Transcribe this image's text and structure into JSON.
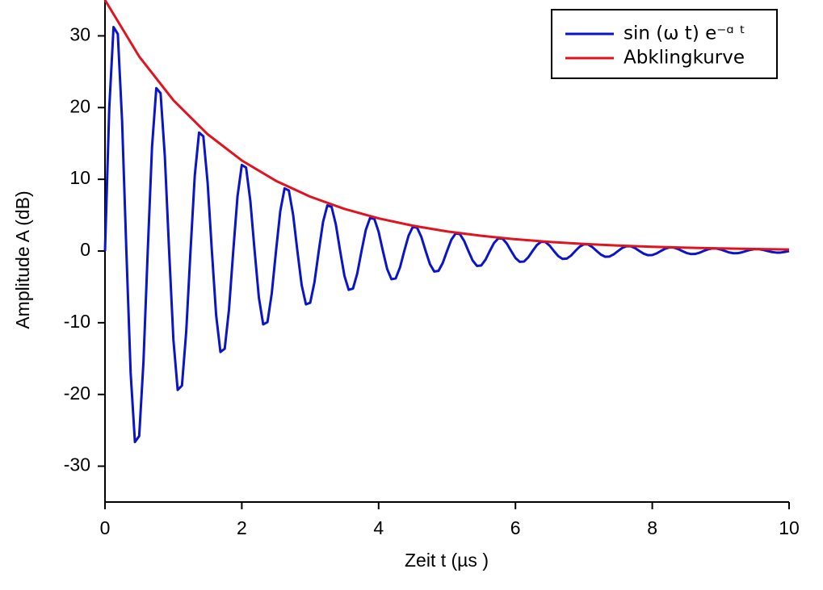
{
  "chart_data": {
    "type": "line",
    "xlabel": "Zeit t (µs )",
    "ylabel": "Amplitude A (dB)",
    "xlim": [
      0,
      10
    ],
    "ylim": [
      -35,
      35
    ],
    "xticks": [
      0,
      2,
      4,
      6,
      8,
      10
    ],
    "yticks": [
      -30,
      -20,
      -10,
      0,
      10,
      20,
      30
    ],
    "legend": "upper right",
    "series": [
      {
        "name": "sin (ω t) e⁻ᵅ ᵗ",
        "color": "#0a14c8",
        "x": [
          0,
          0.0625,
          0.125,
          0.1875,
          0.25,
          0.3125,
          0.375,
          0.4375,
          0.5,
          0.5625,
          0.625,
          0.6875,
          0.75,
          0.8125,
          0.875,
          0.9375,
          1,
          1.0625,
          1.125,
          1.1875,
          1.25,
          1.3125,
          1.375,
          1.4375,
          1.5,
          1.5625,
          1.625,
          1.6875,
          1.75,
          1.8125,
          1.875,
          1.9375,
          2,
          2.0625,
          2.125,
          2.1875,
          2.25,
          2.3125,
          2.375,
          2.4375,
          2.5,
          2.5625,
          2.625,
          2.6875,
          2.75,
          2.8125,
          2.875,
          2.9375,
          3,
          3.0625,
          3.125,
          3.1875,
          3.25,
          3.3125,
          3.375,
          3.4375,
          3.5,
          3.5625,
          3.625,
          3.6875,
          3.75,
          3.8125,
          3.875,
          3.9375,
          4,
          4.0625,
          4.125,
          4.1875,
          4.25,
          4.3125,
          4.375,
          4.4375,
          4.5,
          4.5625,
          4.625,
          4.6875,
          4.75,
          4.8125,
          4.875,
          4.9375,
          5,
          5.0625,
          5.125,
          5.1875,
          5.25,
          5.3125,
          5.375,
          5.4375,
          5.5,
          5.5625,
          5.625,
          5.6875,
          5.75,
          5.8125,
          5.875,
          5.9375,
          6,
          6.0625,
          6.125,
          6.1875,
          6.25,
          6.3125,
          6.375,
          6.4375,
          6.5,
          6.5625,
          6.625,
          6.6875,
          6.75,
          6.8125,
          6.875,
          6.9375,
          7,
          7.0625,
          7.125,
          7.1875,
          7.25,
          7.3125,
          7.375,
          7.4375,
          7.5,
          7.5625,
          7.625,
          7.6875,
          7.75,
          7.8125,
          7.875,
          7.9375,
          8,
          8.0625,
          8.125,
          8.1875,
          8.25,
          8.3125,
          8.375,
          8.4375,
          8.5,
          8.5625,
          8.625,
          8.6875,
          8.75,
          8.8125,
          8.875,
          8.9375,
          9,
          9.0625,
          9.125,
          9.1875,
          9.25,
          9.3125,
          9.375,
          9.4375,
          9.5,
          9.5625,
          9.625,
          9.6875,
          9.75,
          9.8125,
          9.875,
          9.9375,
          10
        ],
        "values": [
          0,
          19.93,
          31.23,
          30.25,
          18.11,
          0,
          -16.99,
          -26.63,
          -25.8,
          -15.44,
          0,
          14.49,
          22.71,
          22.0,
          13.17,
          0,
          -12.36,
          -19.37,
          -18.76,
          -11.23,
          0,
          10.53,
          16.51,
          15.99,
          9.57,
          0,
          -8.98,
          -14.08,
          -13.63,
          -8.16,
          0,
          7.66,
          12.0,
          11.63,
          6.96,
          0,
          -6.53,
          -10.23,
          -9.91,
          -5.93,
          0,
          5.57,
          8.73,
          8.45,
          5.06,
          0,
          -4.75,
          -7.44,
          -7.21,
          -4.32,
          0,
          4.05,
          6.35,
          6.15,
          3.68,
          0,
          -3.45,
          -5.41,
          -5.24,
          -3.14,
          0,
          2.94,
          4.61,
          4.47,
          2.68,
          0,
          -2.51,
          -3.93,
          -3.81,
          -2.28,
          0,
          2.14,
          3.36,
          3.25,
          1.95,
          0,
          -1.83,
          -2.86,
          -2.77,
          -1.66,
          0,
          1.56,
          2.44,
          2.36,
          1.41,
          0,
          -1.33,
          -2.08,
          -2.01,
          -1.21,
          0,
          1.13,
          1.77,
          1.72,
          1.03,
          0,
          -0.97,
          -1.51,
          -1.47,
          -0.88,
          0,
          0.82,
          1.29,
          1.25,
          0.75,
          0,
          -0.7,
          -1.1,
          -1.06,
          -0.64,
          0,
          0.6,
          0.94,
          0.91,
          0.54,
          0,
          -0.51,
          -0.8,
          -0.77,
          -0.46,
          0,
          0.44,
          0.68,
          0.66,
          0.4,
          0,
          -0.37,
          -0.58,
          -0.56,
          -0.34,
          0,
          0.32,
          0.5,
          0.48,
          0.29,
          0,
          -0.27,
          -0.42,
          -0.41,
          -0.25,
          0,
          0.23,
          0.36,
          0.35,
          0.21,
          0,
          -0.2,
          -0.31,
          -0.3,
          -0.18,
          0,
          0.17,
          0.26,
          0.25,
          0.15,
          0,
          -0.14,
          -0.22,
          -0.22,
          -0.13,
          0
        ]
      },
      {
        "name": "Abklingkurve",
        "color": "#e0141e",
        "x": [
          0,
          0.5,
          1,
          1.5,
          2,
          2.5,
          3,
          3.5,
          4,
          4.5,
          5,
          5.5,
          6,
          6.5,
          7,
          7.5,
          8,
          8.5,
          9,
          9.5,
          10
        ],
        "values": [
          35,
          27.12,
          21.02,
          16.29,
          12.62,
          9.78,
          7.58,
          5.87,
          4.55,
          3.53,
          2.73,
          2.12,
          1.64,
          1.27,
          0.99,
          0.76,
          0.59,
          0.46,
          0.36,
          0.28,
          0.21
        ]
      }
    ]
  }
}
